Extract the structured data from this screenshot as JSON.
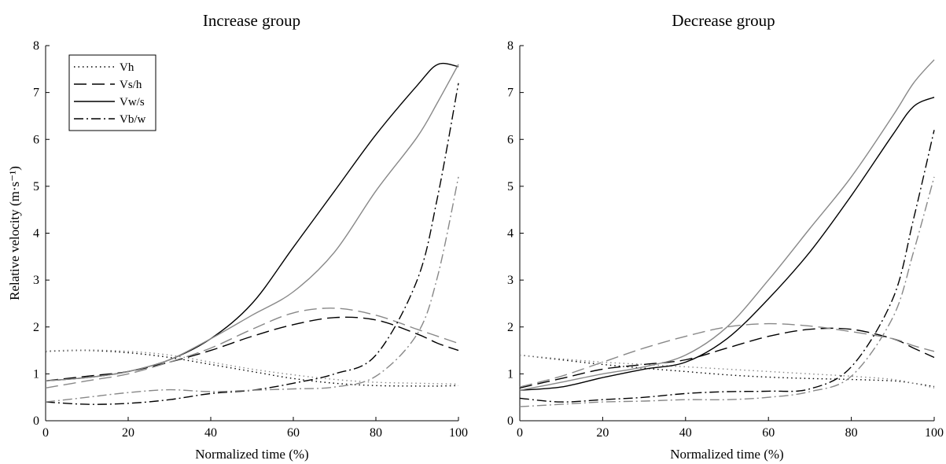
{
  "chart_data": [
    {
      "type": "line",
      "title": "Increase group",
      "xlabel": "Normalized time (%)",
      "ylabel": "Relative velocity (m·s⁻¹)",
      "xlim": [
        0,
        100
      ],
      "ylim": [
        0,
        8
      ],
      "xticks": [
        0,
        20,
        40,
        60,
        80,
        100
      ],
      "yticks": [
        0,
        1,
        2,
        3,
        4,
        5,
        6,
        7,
        8
      ],
      "grid": false,
      "legend": {
        "placement": "top-left",
        "entries": [
          {
            "label": "Vh",
            "style": "dotted"
          },
          {
            "label": "Vs/h",
            "style": "dashed"
          },
          {
            "label": "Vw/s",
            "style": "solid"
          },
          {
            "label": "Vb/w",
            "style": "dashdot"
          }
        ]
      },
      "x": [
        0,
        10,
        20,
        30,
        40,
        50,
        60,
        70,
        80,
        90,
        95,
        100
      ],
      "series": [
        {
          "name": "Vh",
          "color": "#000000",
          "style": "dotted",
          "values": [
            1.48,
            1.5,
            1.45,
            1.35,
            1.2,
            1.05,
            0.9,
            0.8,
            0.75,
            0.74,
            0.74,
            0.75
          ]
        },
        {
          "name": "Vh",
          "color": "#888888",
          "style": "dotted",
          "values": [
            1.49,
            1.51,
            1.48,
            1.4,
            1.25,
            1.1,
            0.98,
            0.88,
            0.82,
            0.8,
            0.79,
            0.78
          ]
        },
        {
          "name": "Vs/h",
          "color": "#000000",
          "style": "dashed",
          "values": [
            0.85,
            0.95,
            1.05,
            1.25,
            1.5,
            1.8,
            2.05,
            2.2,
            2.15,
            1.85,
            1.65,
            1.5
          ]
        },
        {
          "name": "Vs/h",
          "color": "#888888",
          "style": "dashed",
          "values": [
            0.7,
            0.85,
            1.0,
            1.25,
            1.55,
            1.95,
            2.3,
            2.4,
            2.25,
            1.95,
            1.8,
            1.65
          ]
        },
        {
          "name": "Vw/s",
          "color": "#000000",
          "style": "solid",
          "values": [
            0.85,
            0.92,
            1.05,
            1.3,
            1.75,
            2.5,
            3.7,
            4.9,
            6.1,
            7.15,
            7.6,
            7.55
          ]
        },
        {
          "name": "Vw/s",
          "color": "#888888",
          "style": "solid",
          "values": [
            0.85,
            0.92,
            1.05,
            1.3,
            1.75,
            2.25,
            2.75,
            3.6,
            4.9,
            6.05,
            6.8,
            7.6
          ]
        },
        {
          "name": "Vb/w",
          "color": "#000000",
          "style": "dashdot",
          "values": [
            0.4,
            0.35,
            0.37,
            0.45,
            0.58,
            0.65,
            0.8,
            1.0,
            1.4,
            3.0,
            4.8,
            7.2
          ]
        },
        {
          "name": "Vb/w",
          "color": "#888888",
          "style": "dashdot",
          "values": [
            0.4,
            0.5,
            0.6,
            0.66,
            0.62,
            0.65,
            0.68,
            0.72,
            0.95,
            1.85,
            3.1,
            5.2
          ]
        }
      ]
    },
    {
      "type": "line",
      "title": "Decrease group",
      "xlabel": "Normalized time (%)",
      "ylabel": "",
      "xlim": [
        0,
        100
      ],
      "ylim": [
        0,
        8
      ],
      "xticks": [
        0,
        20,
        40,
        60,
        80,
        100
      ],
      "yticks": [
        0,
        1,
        2,
        3,
        4,
        5,
        6,
        7,
        8
      ],
      "grid": false,
      "x": [
        0,
        10,
        20,
        30,
        40,
        50,
        60,
        70,
        80,
        90,
        95,
        100
      ],
      "series": [
        {
          "name": "Vh",
          "color": "#000000",
          "style": "dotted",
          "values": [
            1.4,
            1.3,
            1.2,
            1.12,
            1.05,
            0.98,
            0.93,
            0.9,
            0.88,
            0.85,
            0.8,
            0.73
          ]
        },
        {
          "name": "Vh",
          "color": "#888888",
          "style": "dotted",
          "values": [
            1.4,
            1.32,
            1.25,
            1.2,
            1.15,
            1.1,
            1.05,
            1.0,
            0.95,
            0.88,
            0.8,
            0.7
          ]
        },
        {
          "name": "Vs/h",
          "color": "#000000",
          "style": "dashed",
          "values": [
            0.7,
            0.9,
            1.1,
            1.2,
            1.3,
            1.55,
            1.8,
            1.95,
            1.95,
            1.75,
            1.55,
            1.35
          ]
        },
        {
          "name": "Vs/h",
          "color": "#888888",
          "style": "dashed",
          "values": [
            0.72,
            0.95,
            1.25,
            1.55,
            1.8,
            2.0,
            2.07,
            2.02,
            1.9,
            1.75,
            1.6,
            1.48
          ]
        },
        {
          "name": "Vw/s",
          "color": "#000000",
          "style": "solid",
          "values": [
            0.65,
            0.72,
            0.92,
            1.1,
            1.25,
            1.75,
            2.6,
            3.6,
            4.8,
            6.1,
            6.7,
            6.9
          ]
        },
        {
          "name": "Vw/s",
          "color": "#888888",
          "style": "solid",
          "values": [
            0.65,
            0.82,
            1.0,
            1.15,
            1.4,
            2.0,
            3.0,
            4.1,
            5.2,
            6.5,
            7.2,
            7.7
          ]
        },
        {
          "name": "Vb/w",
          "color": "#000000",
          "style": "dashdot",
          "values": [
            0.48,
            0.4,
            0.45,
            0.5,
            0.58,
            0.62,
            0.63,
            0.68,
            1.15,
            2.6,
            4.3,
            6.2
          ]
        },
        {
          "name": "Vb/w",
          "color": "#888888",
          "style": "dashdot",
          "values": [
            0.3,
            0.35,
            0.4,
            0.42,
            0.45,
            0.45,
            0.5,
            0.62,
            0.95,
            2.2,
            3.6,
            5.2
          ]
        }
      ]
    }
  ]
}
